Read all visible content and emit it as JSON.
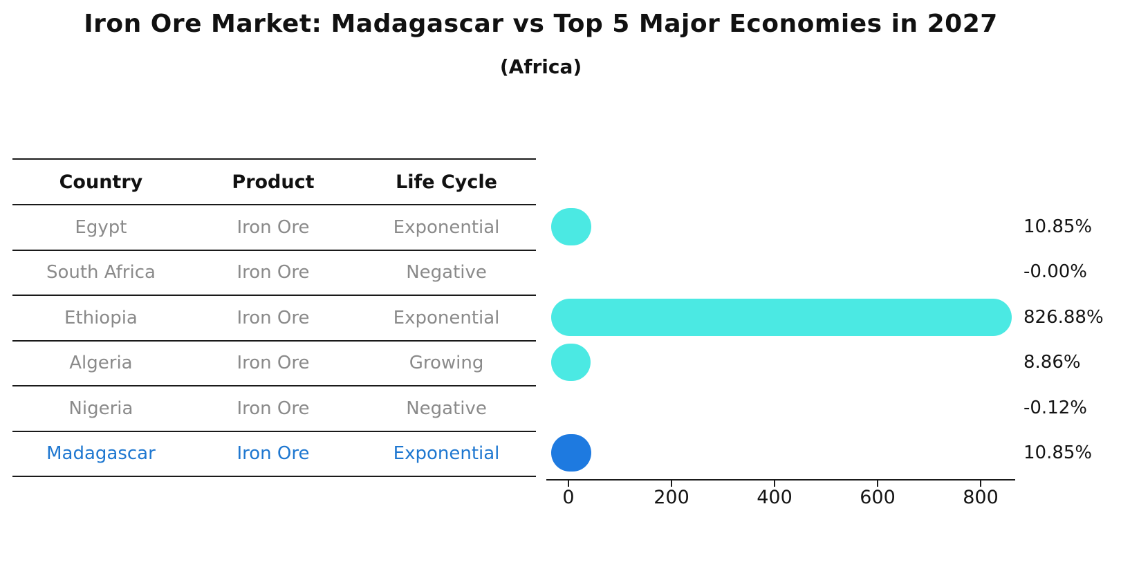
{
  "title": "Iron Ore Market: Madagascar vs Top 5 Major Economies in 2027",
  "subtitle": "(Africa)",
  "table": {
    "headers": [
      "Country",
      "Product",
      "Life Cycle"
    ],
    "rows": [
      {
        "country": "Egypt",
        "product": "Iron Ore",
        "life_cycle": "Exponential",
        "highlight": false
      },
      {
        "country": "South Africa",
        "product": "Iron Ore",
        "life_cycle": "Negative",
        "highlight": false
      },
      {
        "country": "Ethiopia",
        "product": "Iron Ore",
        "life_cycle": "Exponential",
        "highlight": false
      },
      {
        "country": "Algeria",
        "product": "Iron Ore",
        "life_cycle": "Growing",
        "highlight": false
      },
      {
        "country": "Nigeria",
        "product": "Iron Ore",
        "life_cycle": "Negative",
        "highlight": false
      },
      {
        "country": "Madagascar",
        "product": "Iron Ore",
        "life_cycle": "Exponential",
        "highlight": true
      }
    ]
  },
  "chart_data": {
    "type": "bar",
    "orientation": "horizontal",
    "title": "Iron Ore Market: Madagascar vs Top 5 Major Economies in 2027",
    "subtitle": "(Africa)",
    "categories": [
      "Egypt",
      "South Africa",
      "Ethiopia",
      "Algeria",
      "Nigeria",
      "Madagascar"
    ],
    "values": [
      10.85,
      -0.0,
      826.88,
      8.86,
      -0.12,
      10.85
    ],
    "value_labels": [
      "10.85%",
      "-0.00%",
      "826.88%",
      "8.86%",
      "-0.12%",
      "10.85%"
    ],
    "xtick_labels": [
      "0",
      "200",
      "400",
      "600",
      "800"
    ],
    "xtick_values": [
      0,
      200,
      400,
      600,
      800
    ],
    "xlim": [
      0,
      860
    ],
    "grid": false,
    "legend_position": "none",
    "bar_color": "#4BE9E3",
    "highlight_color": "#1E7AE0",
    "highlight_index": 5
  },
  "colors": {
    "bar_cyan": "#4BE9E3",
    "bar_blue": "#1E7AE0",
    "highlight_text": "#1E77D0",
    "muted_text": "#8A8A8A",
    "line": "#1A1A1A"
  }
}
